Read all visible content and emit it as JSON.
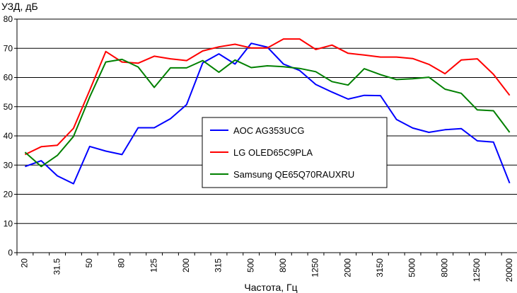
{
  "chart_data": {
    "type": "line",
    "xlabel": "Частота, Гц",
    "ylabel": "УЗД, дБ",
    "ylim": [
      0,
      80
    ],
    "yticks": [
      0,
      10,
      20,
      30,
      40,
      50,
      60,
      70,
      80
    ],
    "grid": "horizontal",
    "legend_position": "center",
    "categories": [
      "20",
      "25",
      "31.5",
      "40",
      "50",
      "63",
      "80",
      "100",
      "125",
      "160",
      "200",
      "250",
      "315",
      "400",
      "500",
      "630",
      "800",
      "1000",
      "1250",
      "1600",
      "2000",
      "2500",
      "3150",
      "4000",
      "5000",
      "6300",
      "8000",
      "10000",
      "12500",
      "16000",
      "20000"
    ],
    "tick_labels": [
      "20",
      "",
      "31.5",
      "",
      "50",
      "",
      "80",
      "",
      "125",
      "",
      "200",
      "",
      "315",
      "",
      "500",
      "",
      "800",
      "",
      "1250",
      "",
      "2000",
      "",
      "3150",
      "",
      "5000",
      "",
      "8000",
      "",
      "12500",
      "",
      "20000"
    ],
    "series": [
      {
        "name": "AOC AG353UCG",
        "color": "#0000ff",
        "values": [
          29.5,
          31.5,
          26.3,
          23.6,
          36.4,
          34.8,
          33.6,
          42.8,
          42.8,
          45.9,
          50.7,
          65.0,
          68.1,
          64.6,
          71.7,
          70.4,
          64.6,
          62.4,
          57.6,
          55.0,
          52.6,
          53.9,
          53.8,
          45.6,
          42.7,
          41.2,
          42.1,
          42.5,
          38.3,
          37.9,
          23.8
        ]
      },
      {
        "name": "LG OLED65C9PLA",
        "color": "#ff0000",
        "values": [
          33.6,
          36.3,
          36.8,
          42.6,
          55.6,
          68.9,
          65.3,
          64.9,
          67.3,
          66.4,
          65.8,
          69.1,
          70.5,
          71.4,
          70.1,
          70.1,
          73.2,
          73.2,
          69.6,
          71.1,
          68.3,
          67.7,
          67.0,
          67.0,
          66.5,
          64.5,
          61.3,
          66.0,
          66.4,
          61.1,
          53.9
        ]
      },
      {
        "name": "Samsung QE65Q70RAUXRU",
        "color": "#008000",
        "values": [
          34.4,
          29.5,
          33.3,
          39.8,
          53.3,
          65.3,
          66.2,
          63.6,
          56.6,
          63.3,
          63.3,
          65.8,
          61.8,
          66.0,
          63.4,
          64.0,
          63.7,
          63.1,
          62.0,
          58.6,
          57.4,
          63.0,
          61.0,
          59.3,
          59.6,
          60.1,
          56.0,
          54.6,
          48.9,
          48.6,
          41.2
        ]
      }
    ]
  }
}
